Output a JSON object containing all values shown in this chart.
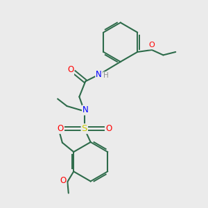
{
  "background_color": "#ebebeb",
  "bond_color": "#2d6b4a",
  "atom_colors": {
    "N": "#0000ff",
    "O": "#ff0000",
    "S": "#cccc00",
    "H": "#909090",
    "C": "#2d6b4a"
  },
  "figsize": [
    3.0,
    3.0
  ],
  "dpi": 100
}
